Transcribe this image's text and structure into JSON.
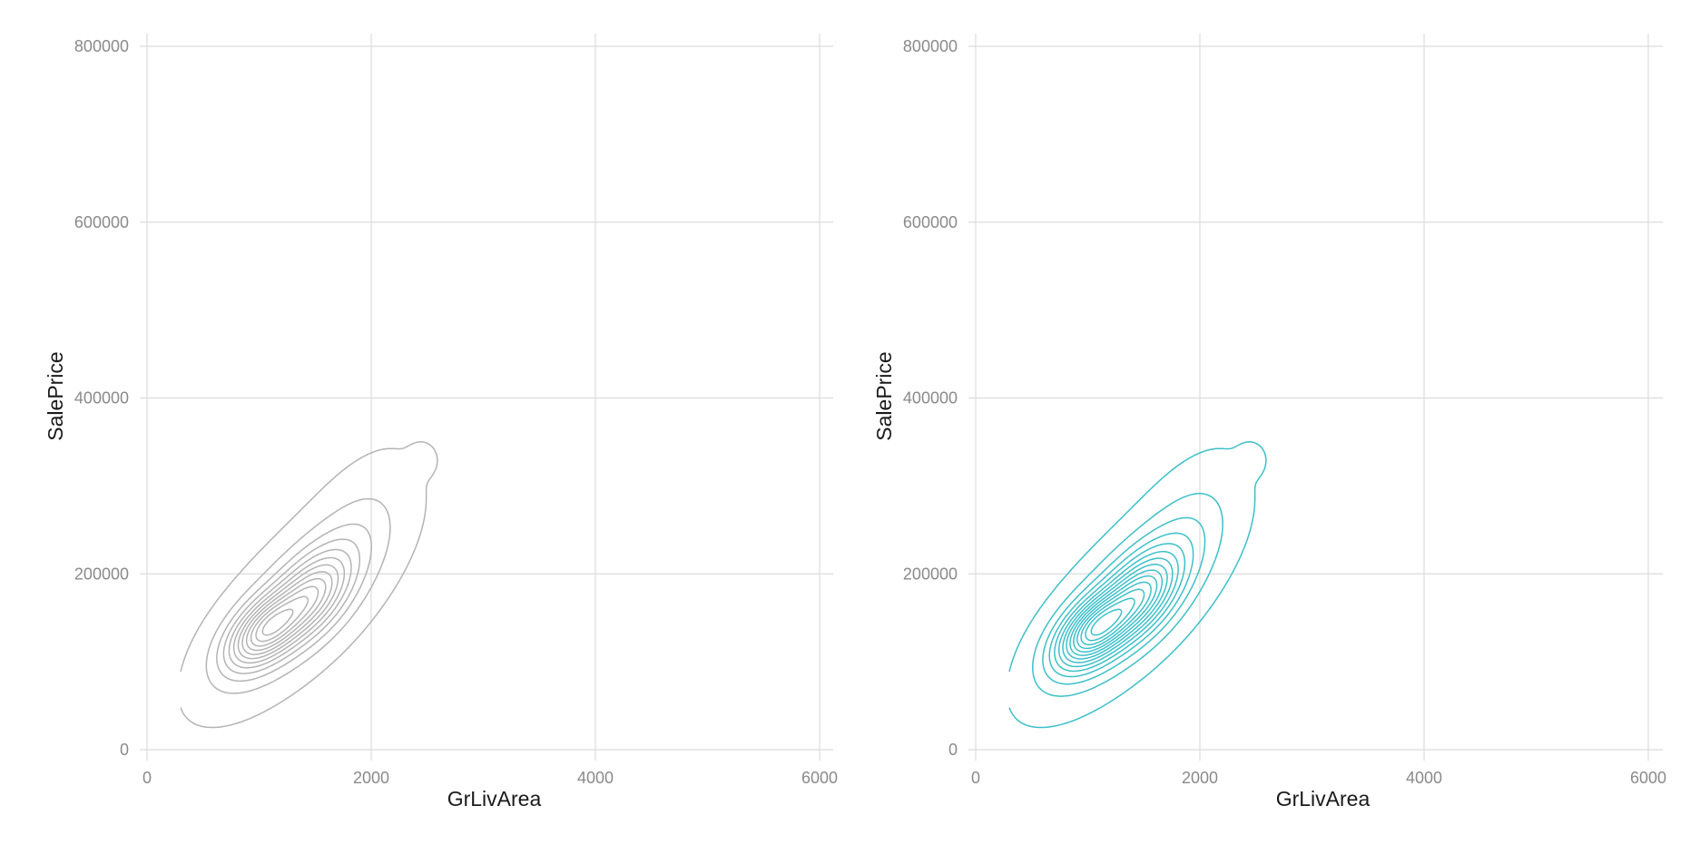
{
  "chart_data": [
    {
      "type": "contour",
      "title": "",
      "xlabel": "GrLivArea",
      "ylabel": "SalePrice",
      "xlim": [
        0,
        6000
      ],
      "ylim": [
        0,
        800000
      ],
      "x_ticks": [
        "0",
        "2000",
        "4000",
        "6000"
      ],
      "y_ticks": [
        "0",
        "200000",
        "400000",
        "600000",
        "800000"
      ],
      "x_tick_values": [
        0,
        2000,
        4000,
        6000
      ],
      "y_tick_values": [
        0,
        200000,
        400000,
        600000,
        800000
      ],
      "grid": true,
      "color": "#b3b3b3",
      "density": {
        "peaks": [
          {
            "x": 1060,
            "y": 136000,
            "sx": 210,
            "sy": 26000,
            "rho": 0.55,
            "w": 1.0
          },
          {
            "x": 1470,
            "y": 175000,
            "sx": 210,
            "sy": 30000,
            "rho": 0.5,
            "w": 0.6
          },
          {
            "x": 1350,
            "y": 165000,
            "sx": 420,
            "sy": 55000,
            "rho": 0.72,
            "w": 0.45
          },
          {
            "x": 1800,
            "y": 240000,
            "sx": 320,
            "sy": 55000,
            "rho": 0.6,
            "w": 0.09
          },
          {
            "x": 2460,
            "y": 330000,
            "sx": 75,
            "sy": 11000,
            "rho": 0.0,
            "w": 0.05
          }
        ],
        "levels": 12
      }
    },
    {
      "type": "contour",
      "title": "",
      "xlabel": "GrLivArea",
      "ylabel": "SalePrice",
      "xlim": [
        0,
        6000
      ],
      "ylim": [
        0,
        800000
      ],
      "x_ticks": [
        "0",
        "2000",
        "4000",
        "6000"
      ],
      "y_ticks": [
        "0",
        "200000",
        "400000",
        "600000",
        "800000"
      ],
      "x_tick_values": [
        0,
        2000,
        4000,
        6000
      ],
      "y_tick_values": [
        0,
        200000,
        400000,
        600000,
        800000
      ],
      "grid": true,
      "color": "#3bbfc9",
      "density": {
        "peaks": [
          {
            "x": 1060,
            "y": 136000,
            "sx": 210,
            "sy": 26000,
            "rho": 0.55,
            "w": 1.0
          },
          {
            "x": 1470,
            "y": 175000,
            "sx": 210,
            "sy": 30000,
            "rho": 0.5,
            "w": 0.6
          },
          {
            "x": 1350,
            "y": 165000,
            "sx": 420,
            "sy": 55000,
            "rho": 0.72,
            "w": 0.45
          },
          {
            "x": 1800,
            "y": 240000,
            "sx": 320,
            "sy": 55000,
            "rho": 0.6,
            "w": 0.09
          },
          {
            "x": 2460,
            "y": 330000,
            "sx": 75,
            "sy": 11000,
            "rho": 0.0,
            "w": 0.05
          }
        ],
        "levels": 14
      }
    }
  ]
}
